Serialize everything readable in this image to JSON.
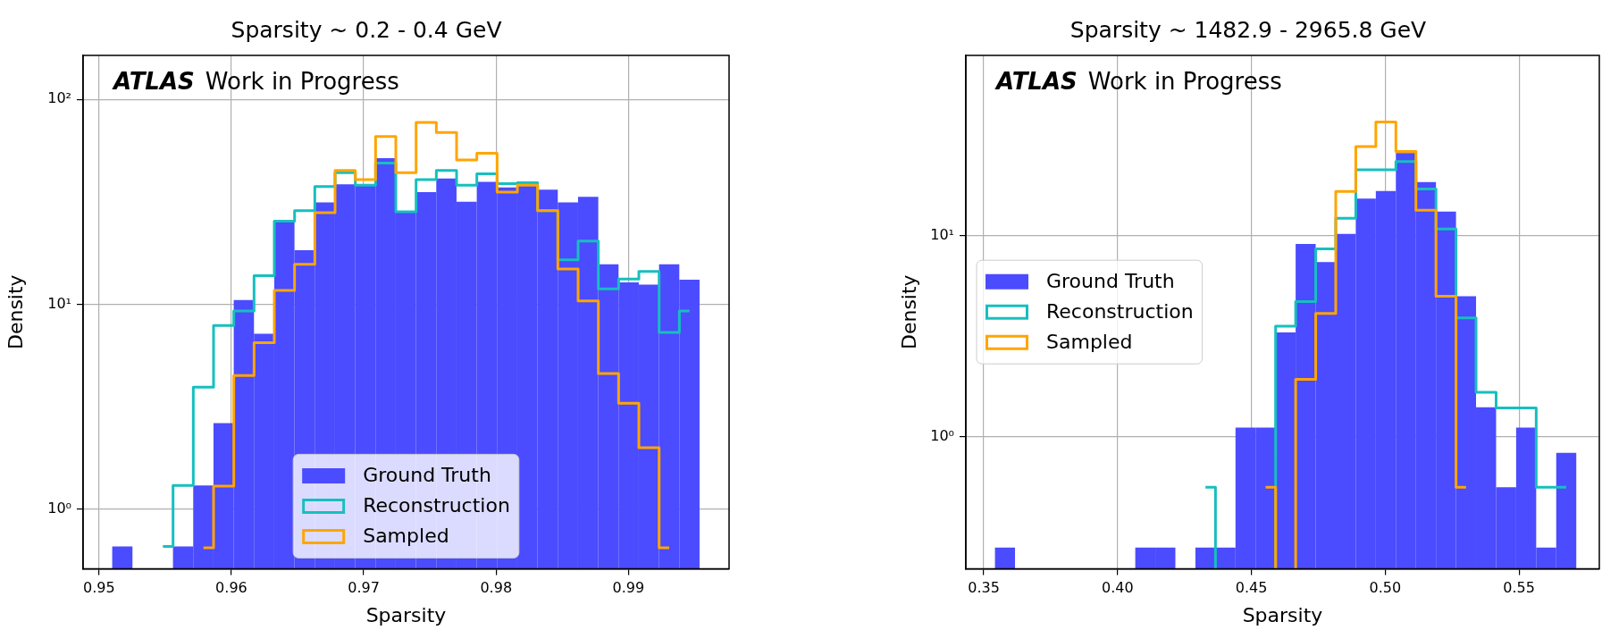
{
  "chart_data": [
    {
      "type": "histogram",
      "title": "Sparsity ~ 0.2 - 0.4 GeV",
      "xlabel": "Sparsity",
      "ylabel": "Density",
      "annotations": [
        "ATLAS",
        "Work in Progress"
      ],
      "log": "y",
      "grid": true,
      "legend": "bottom",
      "xlim": [
        0.9488,
        0.9976
      ],
      "ylim": [
        0.514,
        164
      ],
      "xticks": [
        0.95,
        0.96,
        0.97,
        0.98,
        0.99
      ],
      "yticks": [
        {
          "value": 1,
          "label": "10⁰"
        },
        {
          "value": 10,
          "label": "10¹"
        },
        {
          "value": 100,
          "label": "10²"
        }
      ],
      "bins": [
        0.951,
        0.95253,
        0.95559,
        0.95712,
        0.95865,
        0.96018,
        0.96171,
        0.96324,
        0.96477,
        0.9663,
        0.96783,
        0.96936,
        0.97089,
        0.97242,
        0.97395,
        0.97548,
        0.97701,
        0.97854,
        0.98007,
        0.9816,
        0.98313,
        0.98466,
        0.98619,
        0.98772,
        0.98925,
        0.99078,
        0.99231,
        0.99384,
        0.99537
      ],
      "series": [
        {
          "name": "Ground Truth",
          "color": "#4b4bff",
          "values": [
            0.66,
            null,
            0.66,
            1.31,
            2.64,
            10.5,
            7.2,
            25.9,
            18.4,
            31.5,
            38.6,
            38.6,
            51.7,
            28.5,
            35.3,
            41.2,
            31.7,
            39.6,
            37.2,
            39.6,
            36.3,
            31.5,
            33.5,
            15.7,
            12.8,
            12.5,
            15.7,
            13.2
          ]
        },
        {
          "name": "Reconstruction",
          "type": "step",
          "color": "#17bfbf",
          "x": [
            0.95483,
            0.95636,
            0.95789,
            0.95942,
            0.96095,
            0.96248,
            0.96401,
            0.96554,
            0.96707,
            0.9686,
            0.97013,
            0.97166,
            0.97319,
            0.97472,
            0.97625,
            0.97778,
            0.97931,
            0.98084,
            0.98237,
            0.9839,
            0.98543,
            0.98696,
            0.98849,
            0.99002,
            0.99155,
            0.99308,
            0.99461
          ],
          "values": [
            0.66,
            1.31,
            3.95,
            7.9,
            9.3,
            13.8,
            25.5,
            28.7,
            37.6,
            43.9,
            38.2,
            48.9,
            28.3,
            40.6,
            45.0,
            38.2,
            43.4,
            38.8,
            39.2,
            28.7,
            16.5,
            20.4,
            11.9,
            13.3,
            14.5,
            7.3,
            9.3
          ]
        },
        {
          "name": "Sampled",
          "type": "step",
          "color": "#ffa500",
          "x": [
            0.95789,
            0.95942,
            0.96095,
            0.96248,
            0.96401,
            0.96554,
            0.96707,
            0.9686,
            0.97013,
            0.97166,
            0.97319,
            0.97472,
            0.97625,
            0.97778,
            0.97931,
            0.98084,
            0.98237,
            0.9839,
            0.98543,
            0.98696,
            0.98849,
            0.99002,
            0.99155,
            0.99308
          ],
          "values": [
            0.65,
            1.3,
            4.5,
            6.5,
            11.7,
            15.7,
            28.0,
            45.0,
            40.6,
            65.9,
            43.9,
            77.3,
            69.0,
            50.7,
            54.7,
            35.3,
            38.2,
            28.7,
            14.9,
            10.4,
            4.6,
            3.3,
            2.0,
            0.65
          ]
        }
      ]
    },
    {
      "type": "histogram",
      "title": "Sparsity ~ 1482.9 - 2965.8 GeV",
      "xlabel": "Sparsity",
      "ylabel": "Density",
      "annotations": [
        "ATLAS",
        "Work in Progress"
      ],
      "log": "y",
      "grid": true,
      "legend": "left",
      "xlim": [
        0.3433,
        0.58
      ],
      "ylim": [
        0.22,
        79
      ],
      "xticks": [
        0.35,
        {
          "value": 0.4,
          "label": "0.40"
        },
        0.45,
        {
          "value": 0.5,
          "label": "0.50"
        },
        0.55
      ],
      "yticks": [
        {
          "value": 1,
          "label": "10⁰"
        },
        {
          "value": 10,
          "label": "10¹"
        }
      ],
      "bins": [
        0.35418,
        0.36167,
        0.40661,
        0.4141,
        0.42159,
        0.42908,
        0.43657,
        0.44406,
        0.45155,
        0.45904,
        0.46653,
        0.47402,
        0.48151,
        0.489,
        0.49649,
        0.50398,
        0.51147,
        0.51896,
        0.52645,
        0.53394,
        0.54143,
        0.54892,
        0.55641,
        0.5639,
        0.57139
      ],
      "series": [
        {
          "name": "Ground Truth",
          "color": "#4b4bff",
          "values": [
            0.28,
            null,
            0.28,
            0.28,
            null,
            0.28,
            0.28,
            1.11,
            1.11,
            3.3,
            9.1,
            7.4,
            10.2,
            15.3,
            16.7,
            25.8,
            18.5,
            13.2,
            5.0,
            1.4,
            0.56,
            1.11,
            0.28,
            0.83
          ]
        },
        {
          "name": "Reconstruction",
          "type": "step",
          "color": "#17bfbf",
          "x": [
            0.43283,
            0.44032,
            0.44781,
            0.4553,
            0.46279,
            0.47028,
            0.47777,
            0.48526,
            0.49275,
            0.50024,
            0.50773,
            0.51522,
            0.52271,
            0.5302,
            0.53769,
            0.54518,
            0.55267,
            0.56016,
            0.56765
          ],
          "values": [
            0.56,
            null,
            null,
            null,
            3.55,
            4.7,
            8.6,
            12.2,
            21.3,
            21.3,
            23.4,
            17.1,
            10.8,
            3.9,
            1.66,
            1.39,
            1.39,
            0.56,
            0.56
          ]
        },
        {
          "name": "Sampled",
          "type": "step",
          "color": "#ffa500",
          "x": [
            0.4553,
            0.46279,
            0.47028,
            0.47777,
            0.48526,
            0.49275,
            0.50024,
            0.50773,
            0.51522,
            0.52271,
            0.5302
          ],
          "values": [
            0.56,
            null,
            1.93,
            4.1,
            16.6,
            27.8,
            36.8,
            26.3,
            13.4,
            5.0,
            0.56
          ]
        }
      ]
    }
  ]
}
